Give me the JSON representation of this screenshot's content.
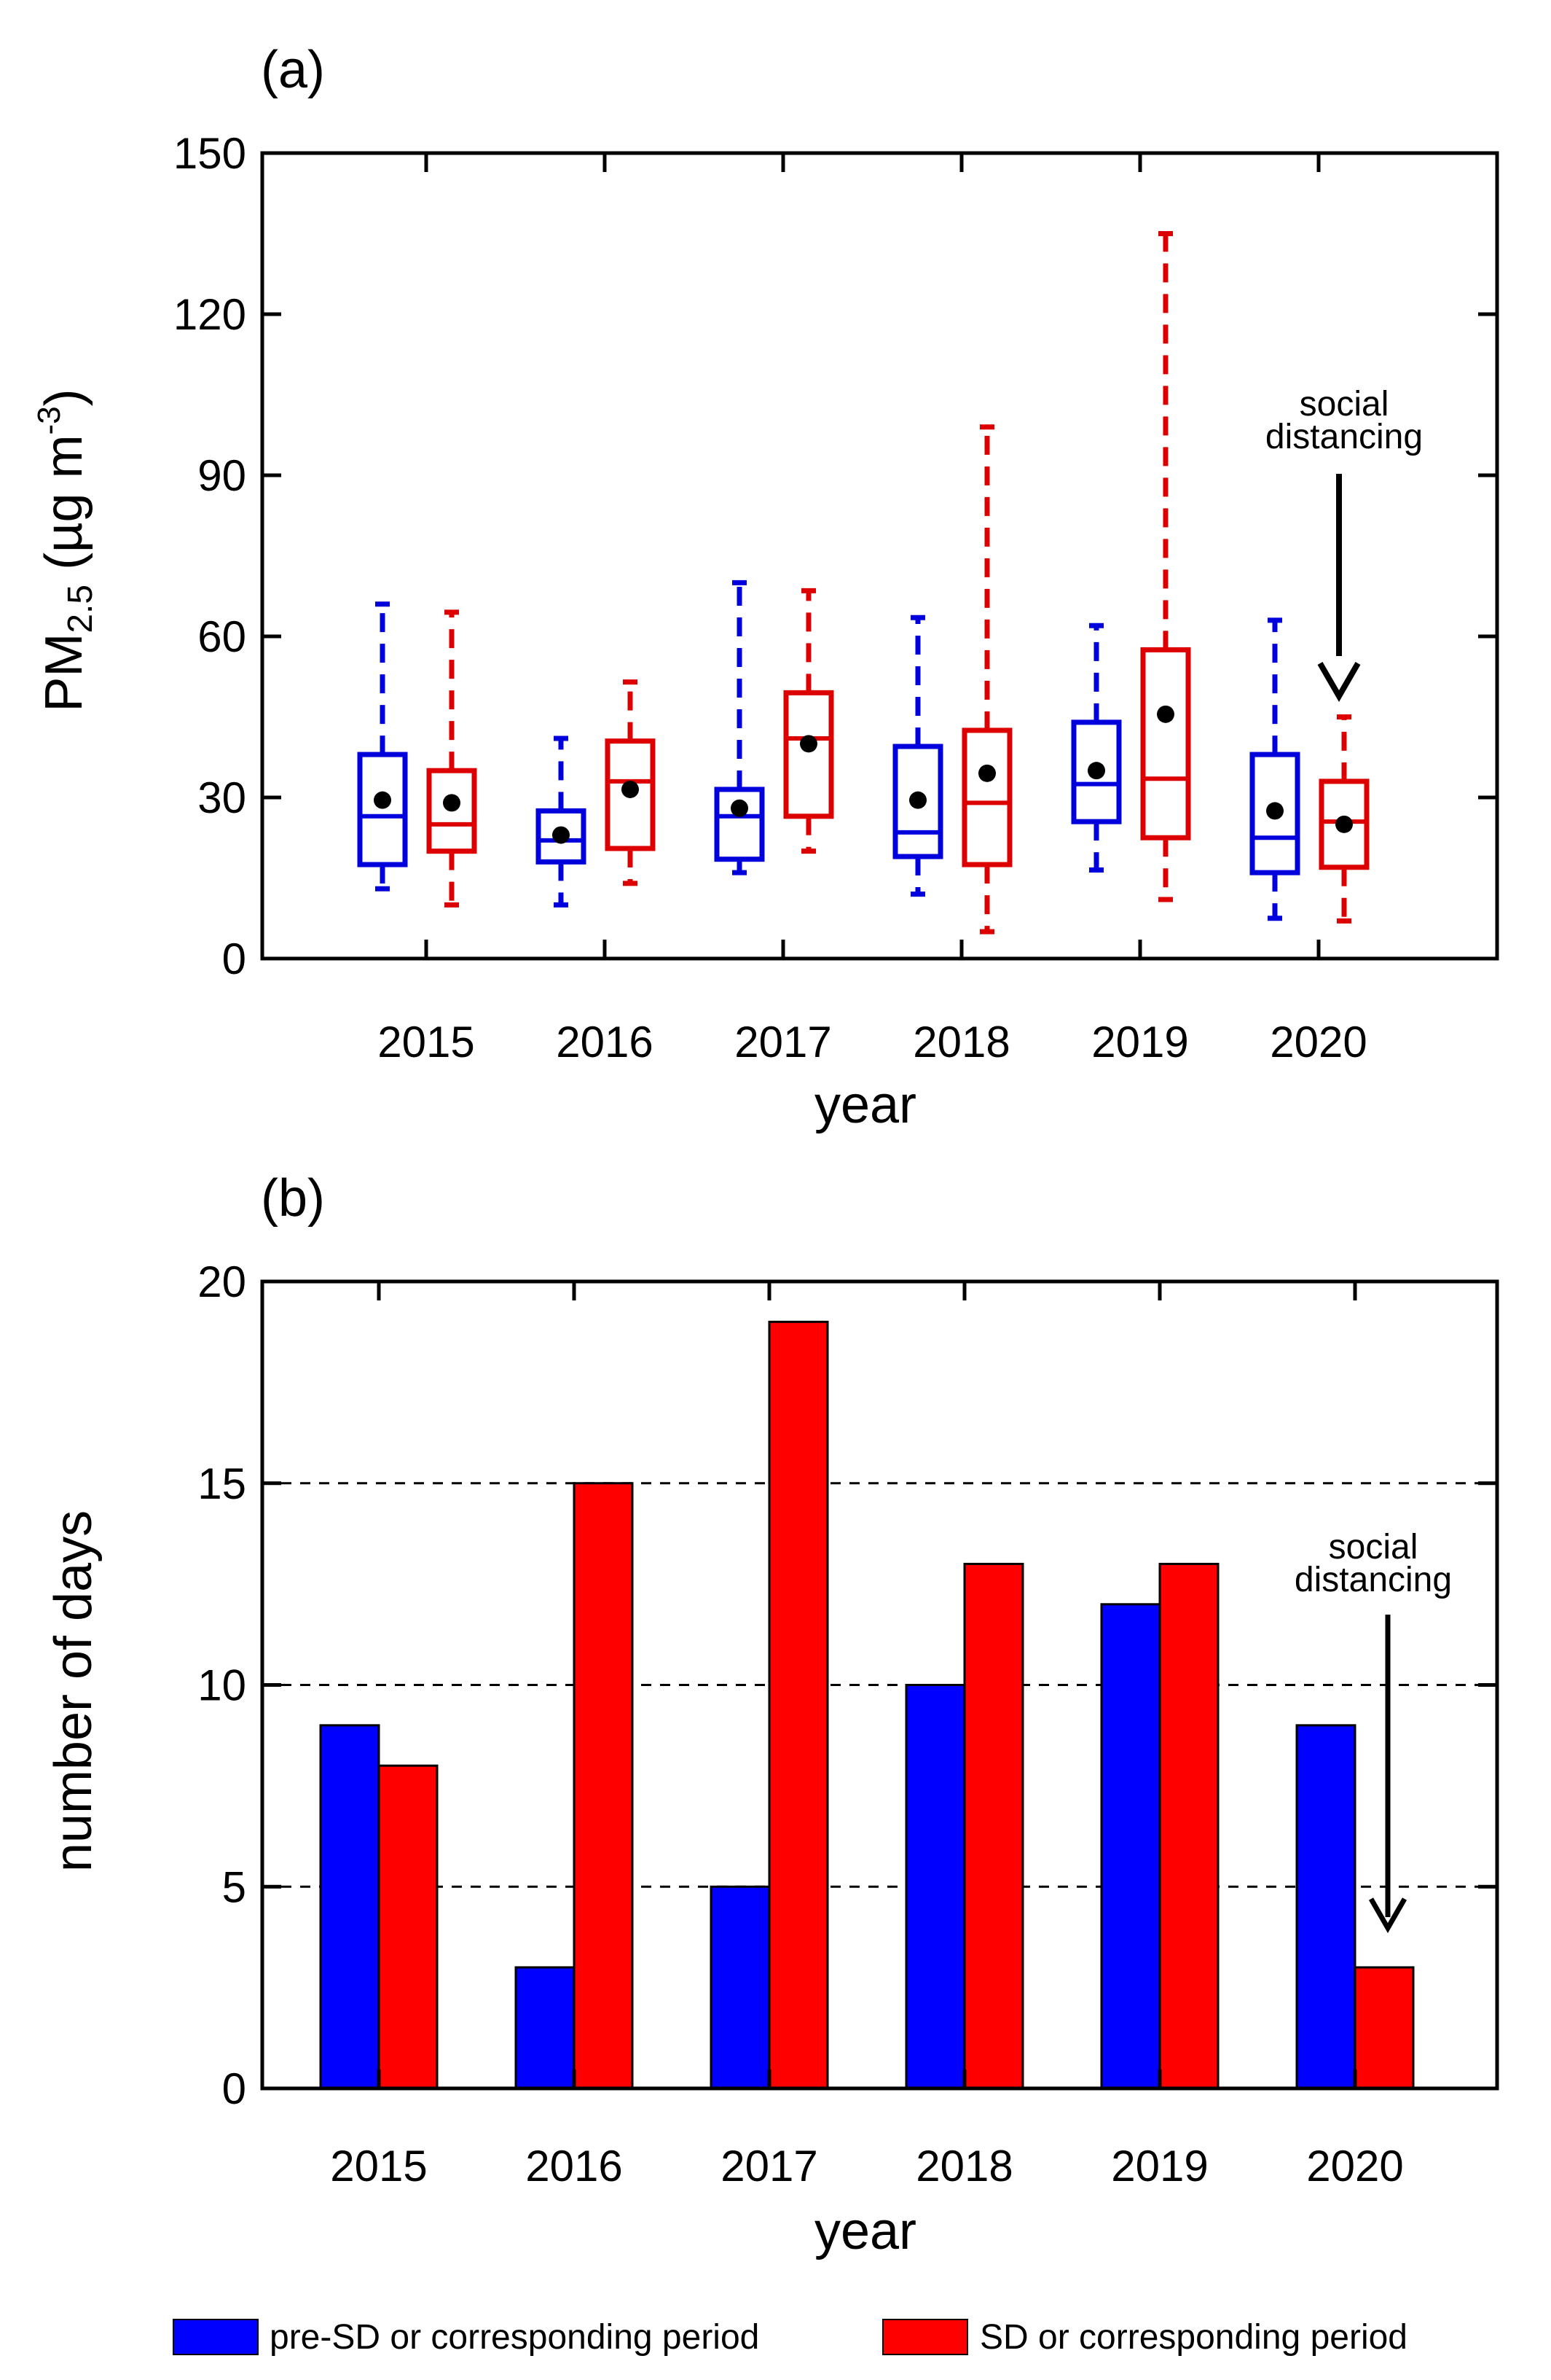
{
  "chart_data": [
    {
      "type": "box",
      "panel_label": "(a)",
      "categories": [
        "2015",
        "2016",
        "2017",
        "2018",
        "2019",
        "2020"
      ],
      "xlabel": "year",
      "ylabel": {
        "base": "PM",
        "sub": "2.5",
        "unit_pre": " (µg m",
        "unit_sup": "-3",
        "unit_post": ")"
      },
      "ylim": [
        0,
        150
      ],
      "yticks": [
        0,
        30,
        60,
        90,
        120,
        150
      ],
      "grid": false,
      "series": [
        {
          "name": "pre-SD or corresponding period",
          "color": "#0000dd",
          "boxes": [
            {
              "min": 13,
              "q1": 17.5,
              "median": 26.5,
              "q3": 38,
              "max": 66,
              "mean": 29.5
            },
            {
              "min": 10,
              "q1": 18,
              "median": 22,
              "q3": 27.5,
              "max": 41,
              "mean": 23
            },
            {
              "min": 16,
              "q1": 18.5,
              "median": 26.5,
              "q3": 31.5,
              "max": 70,
              "mean": 28
            },
            {
              "min": 12,
              "q1": 19,
              "median": 23.5,
              "q3": 39.5,
              "max": 63.5,
              "mean": 29.5
            },
            {
              "min": 16.5,
              "q1": 25.5,
              "median": 32.5,
              "q3": 44,
              "max": 62,
              "mean": 35
            },
            {
              "min": 7.5,
              "q1": 16,
              "median": 22.5,
              "q3": 38,
              "max": 63,
              "mean": 27.5
            }
          ]
        },
        {
          "name": "SD or corresponding period",
          "color": "#dd0000",
          "boxes": [
            {
              "min": 10,
              "q1": 20,
              "median": 25,
              "q3": 35,
              "max": 64.5,
              "mean": 29
            },
            {
              "min": 14,
              "q1": 20.5,
              "median": 33,
              "q3": 40.5,
              "max": 51.5,
              "mean": 31.5
            },
            {
              "min": 20,
              "q1": 26.5,
              "median": 41,
              "q3": 49.5,
              "max": 68.5,
              "mean": 40
            },
            {
              "min": 5,
              "q1": 17.5,
              "median": 29,
              "q3": 42.5,
              "max": 99,
              "mean": 34.5
            },
            {
              "min": 11,
              "q1": 22.5,
              "median": 33.5,
              "q3": 57.5,
              "max": 135,
              "mean": 45.5
            },
            {
              "min": 7,
              "q1": 17,
              "median": 25.5,
              "q3": 33,
              "max": 45,
              "mean": 25
            }
          ]
        }
      ],
      "annotation": {
        "lines": [
          "social",
          "distancing"
        ],
        "target": "2020"
      }
    },
    {
      "type": "bar",
      "panel_label": "(b)",
      "categories": [
        "2015",
        "2016",
        "2017",
        "2018",
        "2019",
        "2020"
      ],
      "xlabel": "year",
      "ylabel": "number of days",
      "ylim": [
        0,
        20
      ],
      "yticks": [
        0,
        5,
        10,
        15,
        20
      ],
      "grid": "dashed at 5, 10, 15",
      "series": [
        {
          "name": "pre-SD or corresponding period",
          "color": "#0000ff",
          "values": [
            9,
            3,
            5,
            10,
            12,
            9
          ]
        },
        {
          "name": "SD or corresponding period",
          "color": "#ff0000",
          "values": [
            8,
            15,
            19,
            13,
            13,
            3
          ]
        }
      ],
      "annotation": {
        "lines": [
          "social",
          "distancing"
        ],
        "target": "2020"
      }
    }
  ],
  "legend": {
    "position": "bottom",
    "items": [
      {
        "label": "pre-SD or corresponding period",
        "color": "#0000ff"
      },
      {
        "label": "SD or corresponding period",
        "color": "#ff0000"
      }
    ]
  }
}
